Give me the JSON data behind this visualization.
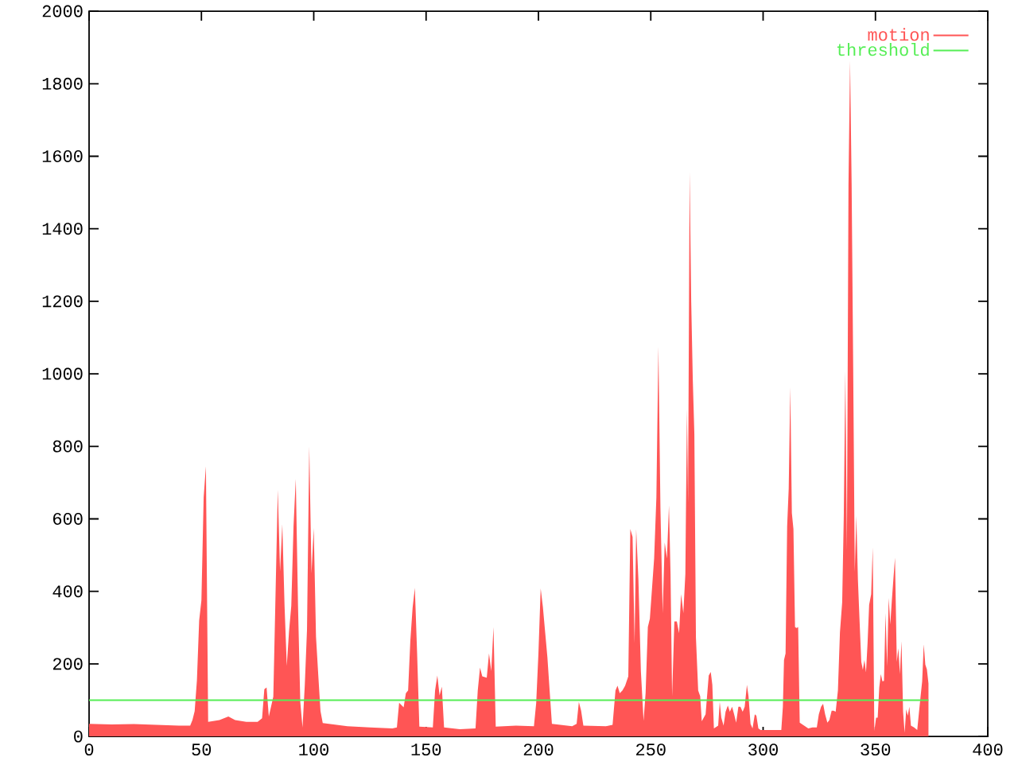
{
  "chart_data": {
    "type": "area",
    "xlim": [
      0,
      400
    ],
    "ylim": [
      0,
      2000
    ],
    "xticks": [
      0,
      50,
      100,
      150,
      200,
      250,
      300,
      350,
      400
    ],
    "yticks": [
      0,
      200,
      400,
      600,
      800,
      1000,
      1200,
      1400,
      1600,
      1800,
      2000
    ],
    "legend": "top right",
    "series": [
      {
        "name": "motion",
        "color": "#ff5555",
        "x": [
          0,
          10,
          20,
          30,
          40,
          45,
          46,
          47,
          48,
          49,
          50,
          51,
          52,
          53,
          58,
          62,
          65,
          70,
          75,
          77,
          78,
          79,
          80,
          82,
          84,
          85,
          86,
          87,
          88,
          89,
          90,
          91,
          92,
          93,
          94,
          95,
          96,
          97,
          98,
          99,
          100,
          101,
          102,
          103,
          104,
          115,
          125,
          135,
          137,
          138,
          140,
          141,
          142,
          143,
          144,
          145,
          146,
          147,
          153,
          154,
          155,
          156,
          157,
          158,
          165,
          172,
          173,
          174,
          175,
          177,
          178,
          179,
          180,
          181,
          190,
          198,
          199,
          200,
          201,
          202,
          203,
          204,
          205,
          206,
          215,
          217,
          218,
          219,
          220,
          230,
          233,
          234.3,
          235.2,
          236.2,
          237.4,
          238.6,
          240.0,
          240.9,
          241.9,
          242.8,
          243.5,
          244.5,
          245.6,
          246.8,
          247.7,
          248.7,
          249.6,
          250.6,
          251.5,
          252.5,
          253.4,
          254.3,
          255.3,
          256.2,
          257.2,
          258.1,
          258.8,
          259.5,
          260.5,
          261.6,
          262.6,
          263.5,
          264.5,
          265.4,
          266.1,
          266.6,
          267.3,
          268.0,
          268.7,
          269.4,
          270.1,
          271.1,
          272.0,
          272.7,
          274.4,
          275.8,
          276.7,
          277.4,
          278.1,
          280.0,
          280.7,
          281.4,
          282.4,
          283.3,
          284.3,
          285.2,
          286.2,
          287.1,
          288.0,
          289.0,
          289.9,
          290.9,
          291.8,
          292.8,
          293.5,
          294.4,
          295.3,
          296.3,
          297.0,
          297.9,
          298.9,
          308.1,
          308.8,
          309.3,
          310.0,
          310.7,
          311.4,
          312.1,
          312.8,
          313.5,
          314.2,
          314.9,
          315.6,
          316.3,
          318.2,
          320.1,
          322.0,
          323.9,
          324.8,
          325.8,
          326.7,
          327.6,
          328.6,
          329.5,
          330.5,
          331.4,
          332.3,
          333.3,
          334.2,
          335.2,
          335.9,
          336.6,
          337.3,
          338.0,
          338.7,
          339.4,
          340.1,
          340.8,
          341.5,
          342.2,
          342.9,
          343.7,
          344.4,
          345.1,
          345.8,
          346.5,
          347.2,
          348.1,
          348.8,
          349.5,
          350.3,
          351.0,
          351.7,
          352.4,
          353.1,
          353.8,
          354.5,
          355.2,
          355.9,
          356.6,
          357.3,
          358.0,
          358.7,
          359.5,
          360.2,
          360.9,
          361.6,
          362.3,
          363.0,
          363.7,
          364.4,
          365.1,
          365.8,
          367.2,
          368.6,
          369.4,
          370.1,
          370.8,
          371.5,
          372.2,
          372.9,
          373.6
        ],
        "values": [
          35,
          33,
          34,
          32,
          30,
          30,
          45,
          70,
          155,
          320,
          375,
          660,
          745,
          40,
          45,
          55,
          45,
          40,
          40,
          50,
          130,
          135,
          55,
          110,
          680,
          455,
          585,
          360,
          195,
          290,
          360,
          580,
          710,
          360,
          95,
          25,
          140,
          295,
          800,
          450,
          575,
          275,
          170,
          70,
          37,
          28,
          25,
          22,
          25,
          93,
          80,
          119,
          127,
          265,
          355,
          410,
          230,
          27,
          25,
          127,
          168,
          113,
          137,
          25,
          20,
          22,
          127,
          190,
          166,
          162,
          229,
          180,
          302,
          27,
          30,
          28,
          92,
          229,
          408,
          356,
          287,
          218,
          125,
          35,
          28,
          35,
          95,
          71,
          30,
          28,
          32,
          127,
          140,
          119,
          127,
          140,
          166,
          572,
          550,
          258,
          572,
          433,
          180,
          43,
          119,
          302,
          325,
          412,
          491,
          659,
          1075,
          630,
          340,
          535,
          491,
          637,
          448,
          111,
          317,
          317,
          285,
          392,
          340,
          448,
          903,
          645,
          1556,
          1199,
          985,
          834,
          273,
          127,
          111,
          42,
          61,
          168,
          178,
          142,
          22,
          30,
          95,
          52,
          30,
          68,
          85,
          68,
          82,
          61,
          38,
          82,
          82,
          68,
          82,
          142,
          111,
          35,
          22,
          61,
          57,
          22,
          18,
          18,
          82,
          211,
          229,
          579,
          684,
          963,
          616,
          572,
          302,
          299,
          302,
          38,
          30,
          22,
          25,
          25,
          61,
          82,
          90,
          61,
          38,
          45,
          71,
          71,
          68,
          127,
          287,
          370,
          606,
          1007,
          514,
          1517,
          1863,
          1524,
          1013,
          454,
          609,
          432,
          323,
          206,
          184,
          211,
          177,
          258,
          363,
          392,
          521,
          15,
          52,
          52,
          135,
          172,
          152,
          153,
          340,
          193,
          382,
          309,
          375,
          435,
          493,
          206,
          243,
          172,
          263,
          68,
          10,
          75,
          57,
          82,
          30,
          25,
          18,
          68,
          111,
          152,
          254,
          198,
          185,
          146
        ]
      },
      {
        "name": "threshold",
        "type": "line",
        "color": "#55ee55",
        "x": [
          0,
          373.6
        ],
        "values": [
          100,
          100
        ]
      }
    ]
  }
}
